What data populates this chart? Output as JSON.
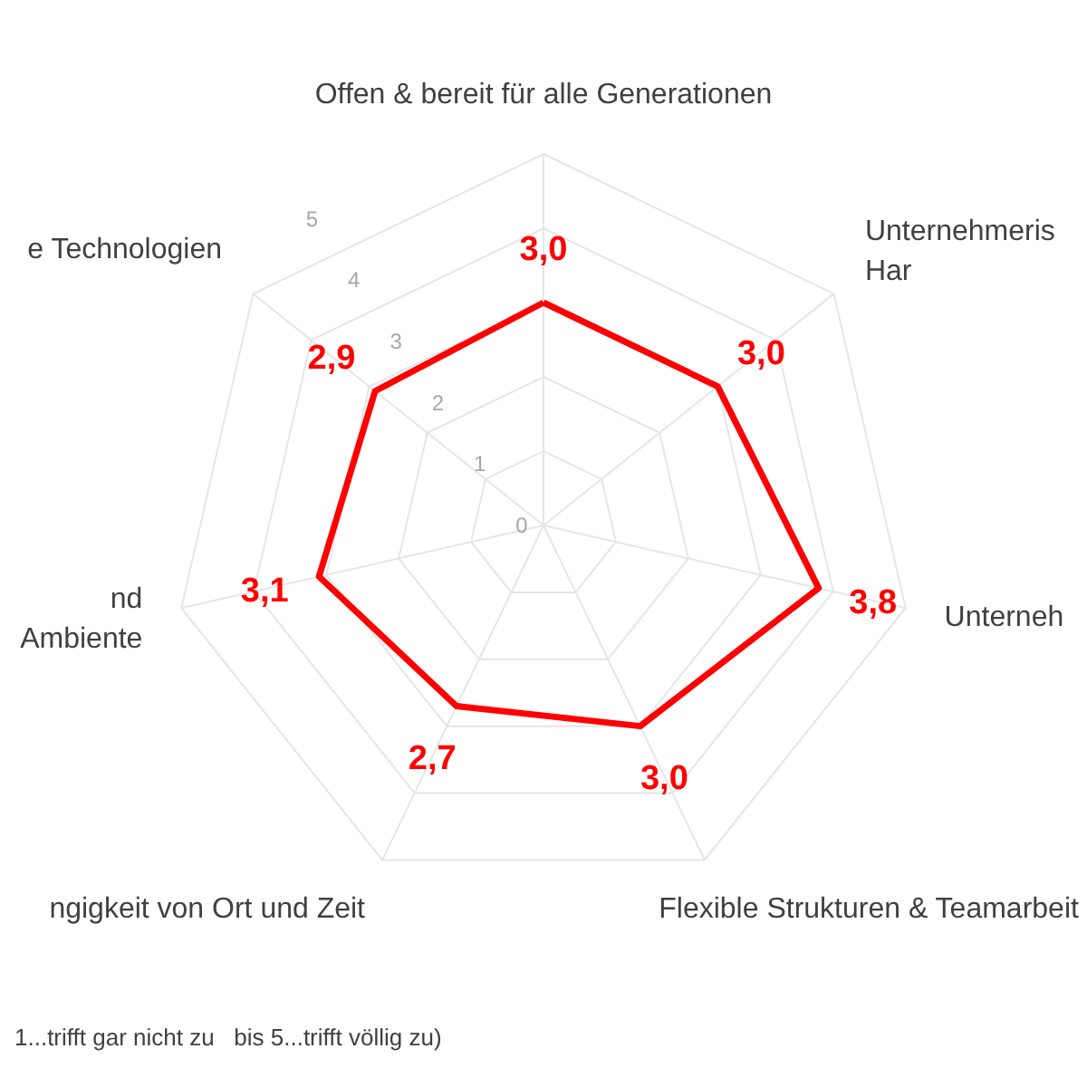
{
  "chart_data": {
    "type": "radar",
    "categories": [
      "Offen & bereit für alle Generationen",
      "Unternehmeris\nHar",
      "Unterneh",
      "Flexible Strukturen & Teamarbeit",
      "ngigkeit von Ort und Zeit",
      "nd\nAmbiente",
      "e Technologien"
    ],
    "series": [
      {
        "color": "#ff0000",
        "values": [
          3.0,
          3.0,
          3.8,
          3.0,
          2.7,
          3.1,
          2.9
        ],
        "value_labels": [
          "3,0",
          "3,0",
          "3,8",
          "3,0",
          "2,7",
          "3,1",
          "2,9"
        ]
      }
    ],
    "ylim": [
      0,
      5
    ],
    "yticks": [
      0,
      1,
      2,
      3,
      4,
      5
    ],
    "grid": true,
    "marker": "none",
    "annotations": [
      "1...trifft gar nicht zu   bis 5...trifft völlig zu)"
    ]
  }
}
